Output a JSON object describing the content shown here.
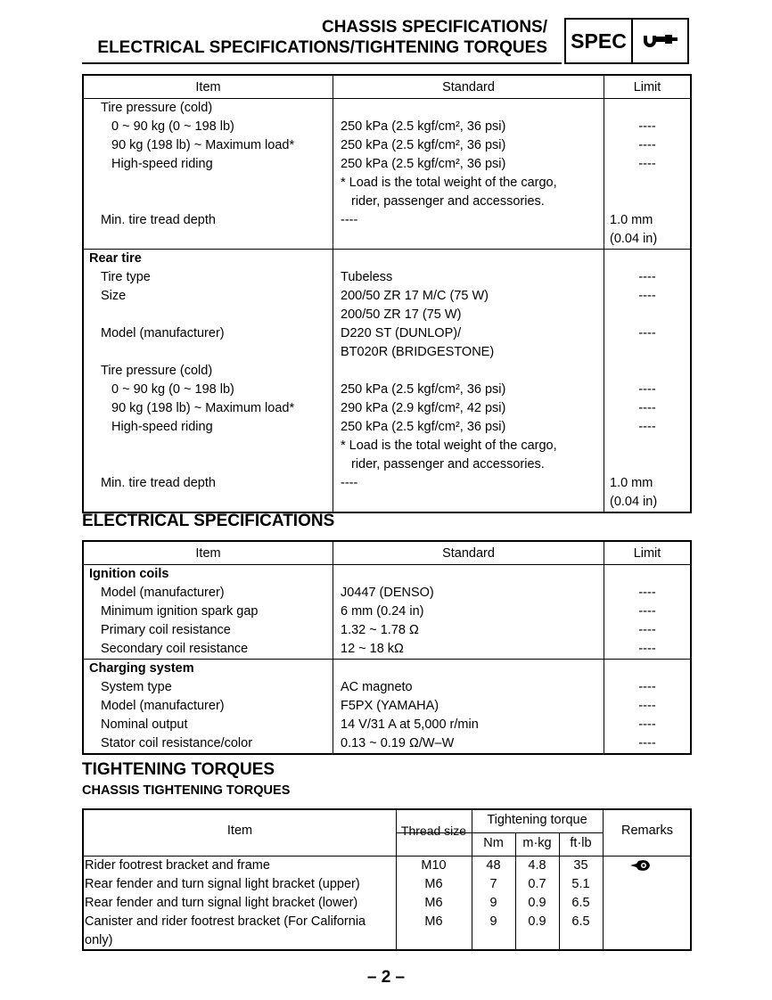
{
  "header": {
    "title_line1": "CHASSIS SPECIFICATIONS/",
    "title_line2": "ELECTRICAL SPECIFICATIONS/TIGHTENING TORQUES",
    "badge": "SPEC",
    "badge_icon": "micrometer-icon"
  },
  "chassis_table": {
    "headers": {
      "item": "Item",
      "standard": "Standard",
      "limit": "Limit"
    },
    "front": {
      "pressure_label": "Tire pressure (cold)",
      "rows": [
        {
          "item": "0 ~ 90 kg (0 ~ 198 lb)",
          "standard": "250 kPa (2.5 kgf/cm², 36 psi)",
          "limit": "----"
        },
        {
          "item": "90 kg (198 lb) ~ Maximum load*",
          "standard": "250 kPa (2.5 kgf/cm², 36 psi)",
          "limit": "----"
        },
        {
          "item": "High-speed riding",
          "standard": "250 kPa (2.5 kgf/cm², 36 psi)",
          "limit": "----"
        }
      ],
      "note_line1": "* Load is the total weight of the cargo,",
      "note_line2": "rider, passenger and accessories.",
      "tread_label": "Min. tire tread depth",
      "tread_standard": "----",
      "tread_limit1": "1.0 mm",
      "tread_limit2": "(0.04 in)"
    },
    "rear": {
      "title": "Rear tire",
      "type_label": "Tire type",
      "type_value": "Tubeless",
      "type_limit": "----",
      "size_label": "Size",
      "size_value1": "200/50 ZR 17 M/C (75 W)",
      "size_value2": "200/50 ZR 17 (75 W)",
      "size_limit": "----",
      "model_label": "Model (manufacturer)",
      "model_value1": "D220 ST (DUNLOP)/",
      "model_value2": "BT020R (BRIDGESTONE)",
      "model_limit": "----",
      "pressure_label": "Tire pressure (cold)",
      "rows": [
        {
          "item": "0 ~ 90 kg (0 ~ 198 lb)",
          "standard": "250 kPa (2.5 kgf/cm², 36 psi)",
          "limit": "----"
        },
        {
          "item": "90 kg (198 lb) ~ Maximum load*",
          "standard": "290 kPa (2.9 kgf/cm², 42 psi)",
          "limit": "----"
        },
        {
          "item": "High-speed riding",
          "standard": "250 kPa (2.5 kgf/cm², 36 psi)",
          "limit": "----"
        }
      ],
      "note_line1": "* Load is the total weight of the cargo,",
      "note_line2": "rider, passenger and accessories.",
      "tread_label": "Min. tire tread depth",
      "tread_standard": "----",
      "tread_limit1": "1.0 mm",
      "tread_limit2": "(0.04 in)"
    }
  },
  "electrical": {
    "heading": "ELECTRICAL SPECIFICATIONS",
    "headers": {
      "item": "Item",
      "standard": "Standard",
      "limit": "Limit"
    },
    "sections": [
      {
        "title": "Ignition coils",
        "rows": [
          {
            "item": "Model (manufacturer)",
            "standard": "J0447 (DENSO)",
            "limit": "----"
          },
          {
            "item": "Minimum ignition spark gap",
            "standard": "6 mm (0.24 in)",
            "limit": "----"
          },
          {
            "item": "Primary coil resistance",
            "standard": "1.32 ~ 1.78 Ω",
            "limit": "----"
          },
          {
            "item": "Secondary coil resistance",
            "standard": "12 ~ 18 kΩ",
            "limit": "----"
          }
        ]
      },
      {
        "title": "Charging system",
        "rows": [
          {
            "item": "System type",
            "standard": "AC magneto",
            "limit": "----"
          },
          {
            "item": "Model (manufacturer)",
            "standard": "F5PX (YAMAHA)",
            "limit": "----"
          },
          {
            "item": "Nominal output",
            "standard": "14 V/31 A at 5,000 r/min",
            "limit": "----"
          },
          {
            "item": "Stator coil resistance/color",
            "standard": "0.13 ~ 0.19 Ω/W–W",
            "limit": "----"
          }
        ]
      }
    ]
  },
  "torques": {
    "heading": "TIGHTENING TORQUES",
    "subheading": "CHASSIS TIGHTENING TORQUES",
    "headers": {
      "item": "Item",
      "thread": "Thread size",
      "torque": "Tightening torque",
      "nm": "Nm",
      "mkg": "m·kg",
      "ftlb": "ft·lb",
      "remarks": "Remarks"
    },
    "rows": [
      {
        "item": "Rider footrest bracket and frame",
        "thread": "M10",
        "nm": "48",
        "mkg": "4.8",
        "ftlb": "35",
        "remarks_icon": "locking-agent-icon"
      },
      {
        "item": "Rear fender and turn signal light bracket (upper)",
        "thread": "M6",
        "nm": "7",
        "mkg": "0.7",
        "ftlb": "5.1"
      },
      {
        "item": "Rear fender and turn signal light bracket (lower)",
        "thread": "M6",
        "nm": "9",
        "mkg": "0.9",
        "ftlb": "6.5"
      },
      {
        "item": "Canister and rider footrest bracket (For California",
        "item_line2": "only)",
        "thread": "M6",
        "nm": "9",
        "mkg": "0.9",
        "ftlb": "6.5"
      }
    ]
  },
  "page_number": "– 2 –"
}
